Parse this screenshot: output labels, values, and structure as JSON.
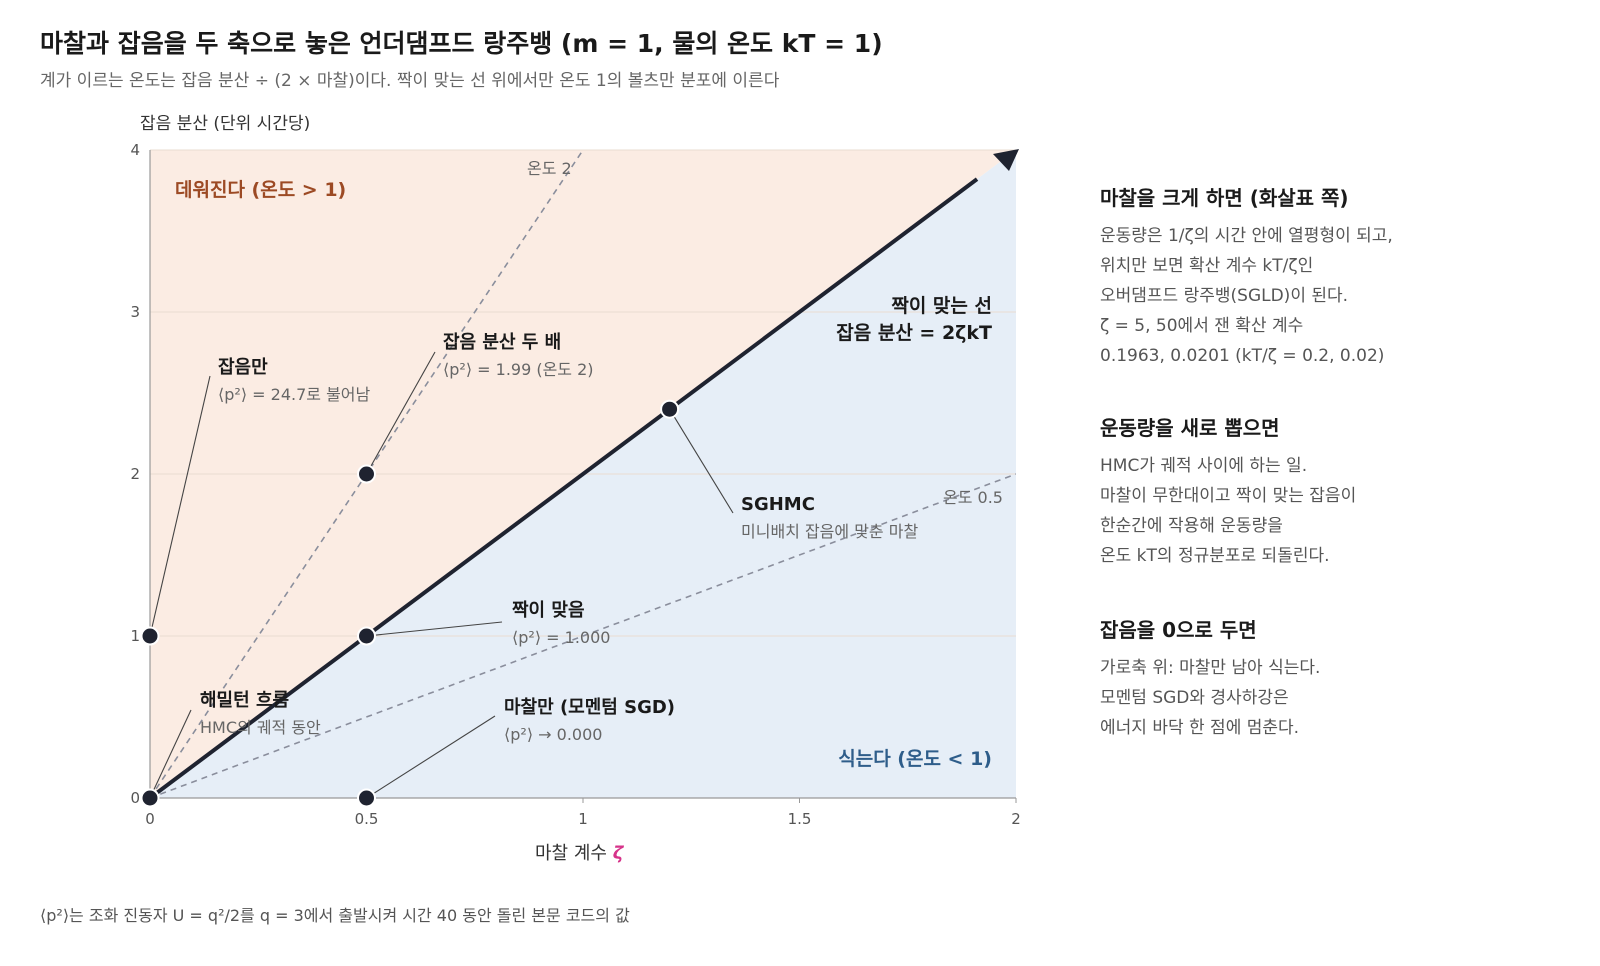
{
  "header": {
    "title": "마찰과 잡음을 두 축으로 놓은 언더댐프드 랑주뱅 (m = 1, 물의 온도 kT = 1)",
    "subtitle": "계가 이르는 온도는 잡음 분산 ÷ (2 × 마찰)이다. 짝이 맞는 선 위에서만 온도 1의 볼츠만 분포에 이른다"
  },
  "footnote": "⟨p²⟩는 조화 진동자 U = q²/2를 q = 3에서 출발시켜 시간 40 동안 돌린 본문 코드의 값",
  "chart_data": {
    "type": "scatter",
    "xlabel": "마찰 계수",
    "xlabel_symbol": "ζ",
    "ylabel": "잡음 분산 (단위 시간당)",
    "xlim": [
      0,
      2
    ],
    "ylim": [
      0,
      4
    ],
    "x_ticks": [
      "0",
      "0.5",
      "1",
      "1.5",
      "2"
    ],
    "y_ticks": [
      "0",
      "1",
      "2",
      "3",
      "4"
    ],
    "region_labels": {
      "hot": "데워진다 (온도 > 1)",
      "cold": "식는다 (온도 < 1)"
    },
    "colors": {
      "hot_region": "#fbece3",
      "cold_region": "#e6eef7",
      "hot_text": "#9c4a24",
      "cold_text": "#2e5d8a",
      "matched_line": "#1f2330",
      "dashed": "#8a8e9c",
      "point": "#1f2330",
      "zeta": "#d6338a"
    },
    "lines": [
      {
        "name": "짝이 맞는 선",
        "sub": "잡음 분산 = 2ζkT",
        "slope": 2,
        "style": "solid"
      },
      {
        "name": "온도 2",
        "slope": 4,
        "style": "dashed"
      },
      {
        "name": "온도 0.5",
        "slope": 1,
        "style": "dashed"
      }
    ],
    "points": [
      {
        "x": 0,
        "y": 1,
        "title": "잡음만",
        "sub": "⟨p²⟩ = 24.7로 불어남"
      },
      {
        "x": 0.5,
        "y": 2,
        "title": "잡음 분산 두 배",
        "sub": "⟨p²⟩ = 1.99 (온도 2)"
      },
      {
        "x": 1.2,
        "y": 2.4,
        "title": "SGHMC",
        "sub": "미니배치 잡음에 맞춘 마찰"
      },
      {
        "x": 0.5,
        "y": 1,
        "title": "짝이 맞음",
        "sub": "⟨p²⟩ = 1.000"
      },
      {
        "x": 0,
        "y": 0,
        "title": "해밀턴 흐름",
        "sub": "HMC의 궤적 동안"
      },
      {
        "x": 0.5,
        "y": 0,
        "title": "마찰만 (모멘텀 SGD)",
        "sub": "⟨p²⟩ → 0.000"
      }
    ]
  },
  "sidebar": {
    "sections": [
      {
        "heading": "마찰을 크게 하면 (화살표 쪽)",
        "lines": [
          "운동량은 1/ζ의 시간 안에 열평형이 되고,",
          "위치만 보면 확산 계수 kT/ζ인",
          "오버댐프드 랑주뱅(SGLD)이 된다.",
          "ζ = 5, 50에서 잰 확산 계수",
          "0.1963, 0.0201 (kT/ζ = 0.2, 0.02)"
        ]
      },
      {
        "heading": "운동량을 새로 뽑으면",
        "lines": [
          "HMC가 궤적 사이에 하는 일.",
          "마찰이 무한대이고 짝이 맞는 잡음이",
          "한순간에 작용해 운동량을",
          "온도 kT의 정규분포로 되돌린다."
        ]
      },
      {
        "heading": "잡음을 0으로 두면",
        "lines": [
          "가로축 위: 마찰만 남아 식는다.",
          "모멘텀 SGD와 경사하강은",
          "에너지 바닥 한 점에 멈춘다."
        ]
      }
    ]
  }
}
